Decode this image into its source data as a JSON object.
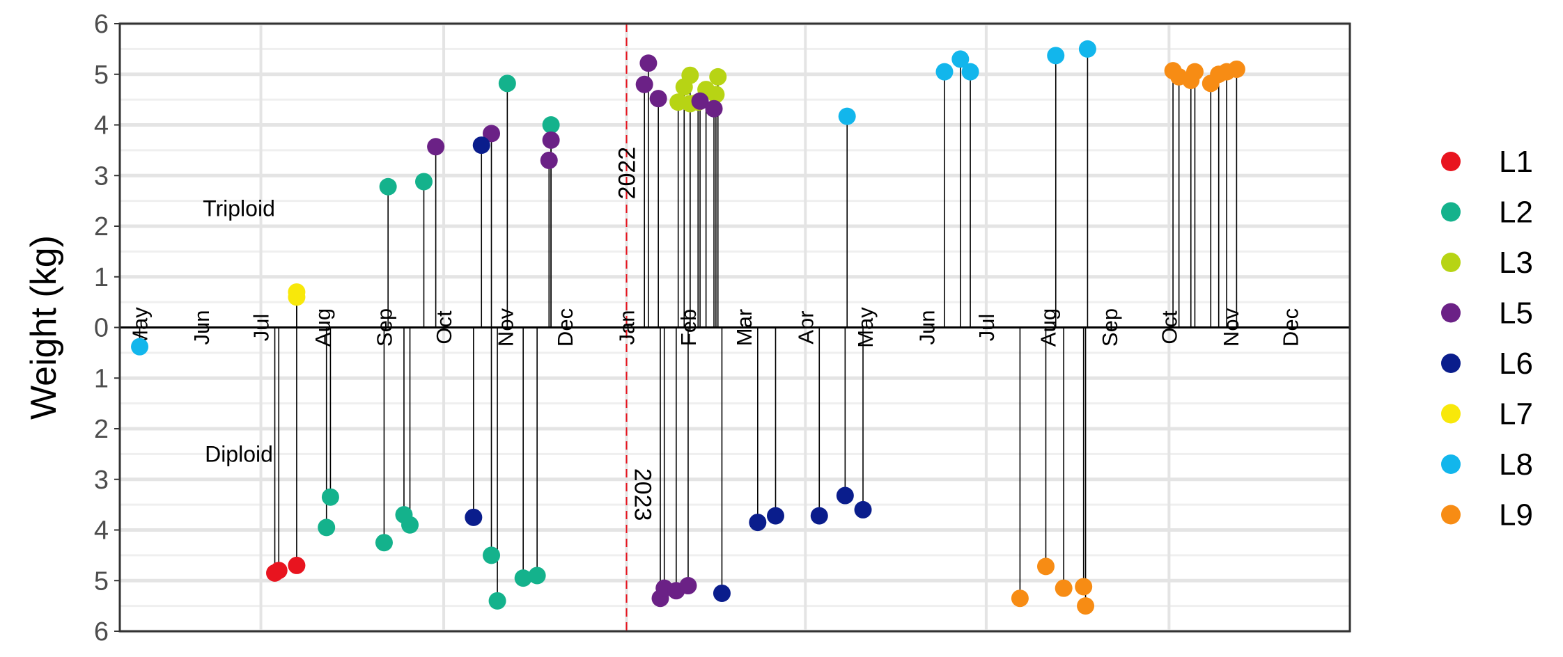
{
  "chart_data": {
    "type": "scatter",
    "title": "",
    "ylabel": "Weight (kg)",
    "xlabel": "",
    "y_tick_labels": [
      "6",
      "5",
      "4",
      "3",
      "2",
      "1",
      "0",
      "1",
      "2",
      "3",
      "4",
      "5",
      "6"
    ],
    "ylim": [
      -6,
      6
    ],
    "x_axis": {
      "start": "2022-04-21",
      "end": "2023-12-31",
      "month_ticks": [
        {
          "label": "May",
          "date": "2022-05-01"
        },
        {
          "label": "Jun",
          "date": "2022-06-01"
        },
        {
          "label": "Jul",
          "date": "2022-07-01"
        },
        {
          "label": "Aug",
          "date": "2022-08-01"
        },
        {
          "label": "Sep",
          "date": "2022-09-01"
        },
        {
          "label": "Oct",
          "date": "2022-10-01"
        },
        {
          "label": "Nov",
          "date": "2022-11-01"
        },
        {
          "label": "Dec",
          "date": "2022-12-01"
        },
        {
          "label": "Jan",
          "date": "2023-01-01"
        },
        {
          "label": "Feb",
          "date": "2023-02-01"
        },
        {
          "label": "Mar",
          "date": "2023-03-01"
        },
        {
          "label": "Apr",
          "date": "2023-04-01"
        },
        {
          "label": "May",
          "date": "2023-05-01"
        },
        {
          "label": "Jun",
          "date": "2023-06-01"
        },
        {
          "label": "Jul",
          "date": "2023-07-01"
        },
        {
          "label": "Aug",
          "date": "2023-08-01"
        },
        {
          "label": "Sep",
          "date": "2023-09-01"
        },
        {
          "label": "Oct",
          "date": "2023-10-01"
        },
        {
          "label": "Nov",
          "date": "2023-11-01"
        },
        {
          "label": "Dec",
          "date": "2023-12-01"
        }
      ]
    },
    "grid": true,
    "legend_position": "right",
    "annotations": {
      "year_divider_date": "2023-01-01",
      "year_before": "2022",
      "year_after": "2023",
      "upper_group": "Triploid",
      "lower_group": "Diploid"
    },
    "series": [
      {
        "name": "L1",
        "color": "#E8141F",
        "points": [
          {
            "date": "2022-07-08",
            "y": -4.85
          },
          {
            "date": "2022-07-10",
            "y": -4.8
          },
          {
            "date": "2022-07-19",
            "y": -4.7
          }
        ]
      },
      {
        "name": "L2",
        "color": "#14B28C",
        "points": [
          {
            "date": "2022-08-05",
            "y": -3.35
          },
          {
            "date": "2022-08-03",
            "y": -3.95
          },
          {
            "date": "2022-09-01",
            "y": -4.25
          },
          {
            "date": "2022-09-03",
            "y": 2.78
          },
          {
            "date": "2022-09-11",
            "y": -3.7
          },
          {
            "date": "2022-09-14",
            "y": -3.9
          },
          {
            "date": "2022-09-21",
            "y": 2.88
          },
          {
            "date": "2022-10-25",
            "y": -4.5
          },
          {
            "date": "2022-10-28",
            "y": -5.4
          },
          {
            "date": "2022-11-02",
            "y": 4.82
          },
          {
            "date": "2022-11-10",
            "y": -4.95
          },
          {
            "date": "2022-11-17",
            "y": -4.9
          },
          {
            "date": "2022-11-24",
            "y": 4.0
          }
        ]
      },
      {
        "name": "L3",
        "color": "#B7D414",
        "points": [
          {
            "date": "2023-01-27",
            "y": 4.45
          },
          {
            "date": "2023-01-30",
            "y": 4.75
          },
          {
            "date": "2023-02-02",
            "y": 4.42
          },
          {
            "date": "2023-02-02",
            "y": 4.98
          },
          {
            "date": "2023-02-06",
            "y": 4.45
          },
          {
            "date": "2023-02-10",
            "y": 4.7
          },
          {
            "date": "2023-02-15",
            "y": 4.6
          },
          {
            "date": "2023-02-16",
            "y": 4.95
          }
        ]
      },
      {
        "name": "L5",
        "color": "#6B2186",
        "points": [
          {
            "date": "2022-09-27",
            "y": 3.57
          },
          {
            "date": "2022-10-25",
            "y": 3.83
          },
          {
            "date": "2022-11-23",
            "y": 3.3
          },
          {
            "date": "2022-11-24",
            "y": 3.7
          },
          {
            "date": "2023-01-10",
            "y": 4.8
          },
          {
            "date": "2023-01-12",
            "y": 5.22
          },
          {
            "date": "2023-01-17",
            "y": 4.52
          },
          {
            "date": "2023-01-18",
            "y": -5.35
          },
          {
            "date": "2023-01-20",
            "y": -5.15
          },
          {
            "date": "2023-01-26",
            "y": -5.2
          },
          {
            "date": "2023-02-01",
            "y": -5.1
          },
          {
            "date": "2023-02-07",
            "y": 4.47
          },
          {
            "date": "2023-02-14",
            "y": 4.32
          }
        ]
      },
      {
        "name": "L6",
        "color": "#0A1D8C",
        "points": [
          {
            "date": "2022-10-16",
            "y": -3.75
          },
          {
            "date": "2022-10-20",
            "y": 3.6
          },
          {
            "date": "2023-02-18",
            "y": -5.25
          },
          {
            "date": "2023-03-08",
            "y": -3.85
          },
          {
            "date": "2023-03-17",
            "y": -3.72
          },
          {
            "date": "2023-04-08",
            "y": -3.72
          },
          {
            "date": "2023-04-21",
            "y": -3.32
          },
          {
            "date": "2023-04-30",
            "y": -3.6
          }
        ]
      },
      {
        "name": "L7",
        "color": "#F8E80A",
        "points": [
          {
            "date": "2022-07-19",
            "y": 0.6
          },
          {
            "date": "2022-07-19",
            "y": 0.7
          }
        ]
      },
      {
        "name": "L8",
        "color": "#12B6EC",
        "points": [
          {
            "date": "2022-05-01",
            "y": -0.38
          },
          {
            "date": "2023-04-22",
            "y": 4.17
          },
          {
            "date": "2023-06-10",
            "y": 5.05
          },
          {
            "date": "2023-06-18",
            "y": 5.3
          },
          {
            "date": "2023-06-23",
            "y": 5.05
          },
          {
            "date": "2023-08-05",
            "y": 5.37
          },
          {
            "date": "2023-08-21",
            "y": 5.5
          }
        ]
      },
      {
        "name": "L9",
        "color": "#F78C14",
        "points": [
          {
            "date": "2023-07-18",
            "y": -5.35
          },
          {
            "date": "2023-07-31",
            "y": -4.72
          },
          {
            "date": "2023-08-09",
            "y": -5.15
          },
          {
            "date": "2023-08-19",
            "y": -5.12
          },
          {
            "date": "2023-08-20",
            "y": -5.5
          },
          {
            "date": "2023-10-03",
            "y": 5.07
          },
          {
            "date": "2023-10-06",
            "y": 4.95
          },
          {
            "date": "2023-10-12",
            "y": 4.88
          },
          {
            "date": "2023-10-14",
            "y": 5.05
          },
          {
            "date": "2023-10-22",
            "y": 4.82
          },
          {
            "date": "2023-10-26",
            "y": 5.0
          },
          {
            "date": "2023-10-30",
            "y": 5.05
          },
          {
            "date": "2023-11-04",
            "y": 5.1
          }
        ]
      }
    ]
  }
}
